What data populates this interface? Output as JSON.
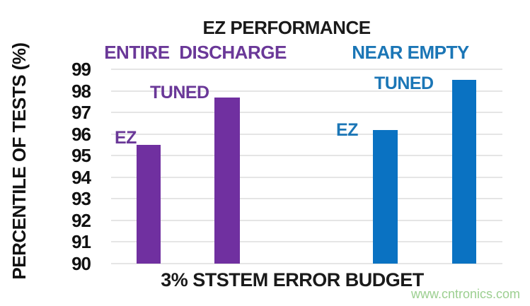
{
  "watermark": {
    "text": "www.cntronics.com",
    "color": "#9CCF90"
  },
  "chart_data": {
    "type": "bar",
    "title": "EZ PERFORMANCE",
    "xlabel": "3% STSTEM ERROR BUDGET",
    "ylabel": "PERCENTILE OF TESTS (%)",
    "ylim": [
      90,
      99
    ],
    "yticks": [
      90,
      91,
      92,
      93,
      94,
      95,
      96,
      97,
      98,
      99
    ],
    "grid": true,
    "grid_color": "#E5E5E5",
    "legend_position": "none",
    "groups": [
      {
        "name": "ENTIRE DISCHARGE",
        "color": "#7030A0",
        "label_color": "#6A3898",
        "bars": [
          {
            "label": "EZ",
            "value": 95.5
          },
          {
            "label": "TUNED",
            "value": 97.7
          }
        ]
      },
      {
        "name": "NEAR EMPTY",
        "color": "#0A72C2",
        "label_color": "#1B76B6",
        "bars": [
          {
            "label": "EZ",
            "value": 96.2
          },
          {
            "label": "TUNED",
            "value": 98.5
          }
        ]
      }
    ]
  }
}
